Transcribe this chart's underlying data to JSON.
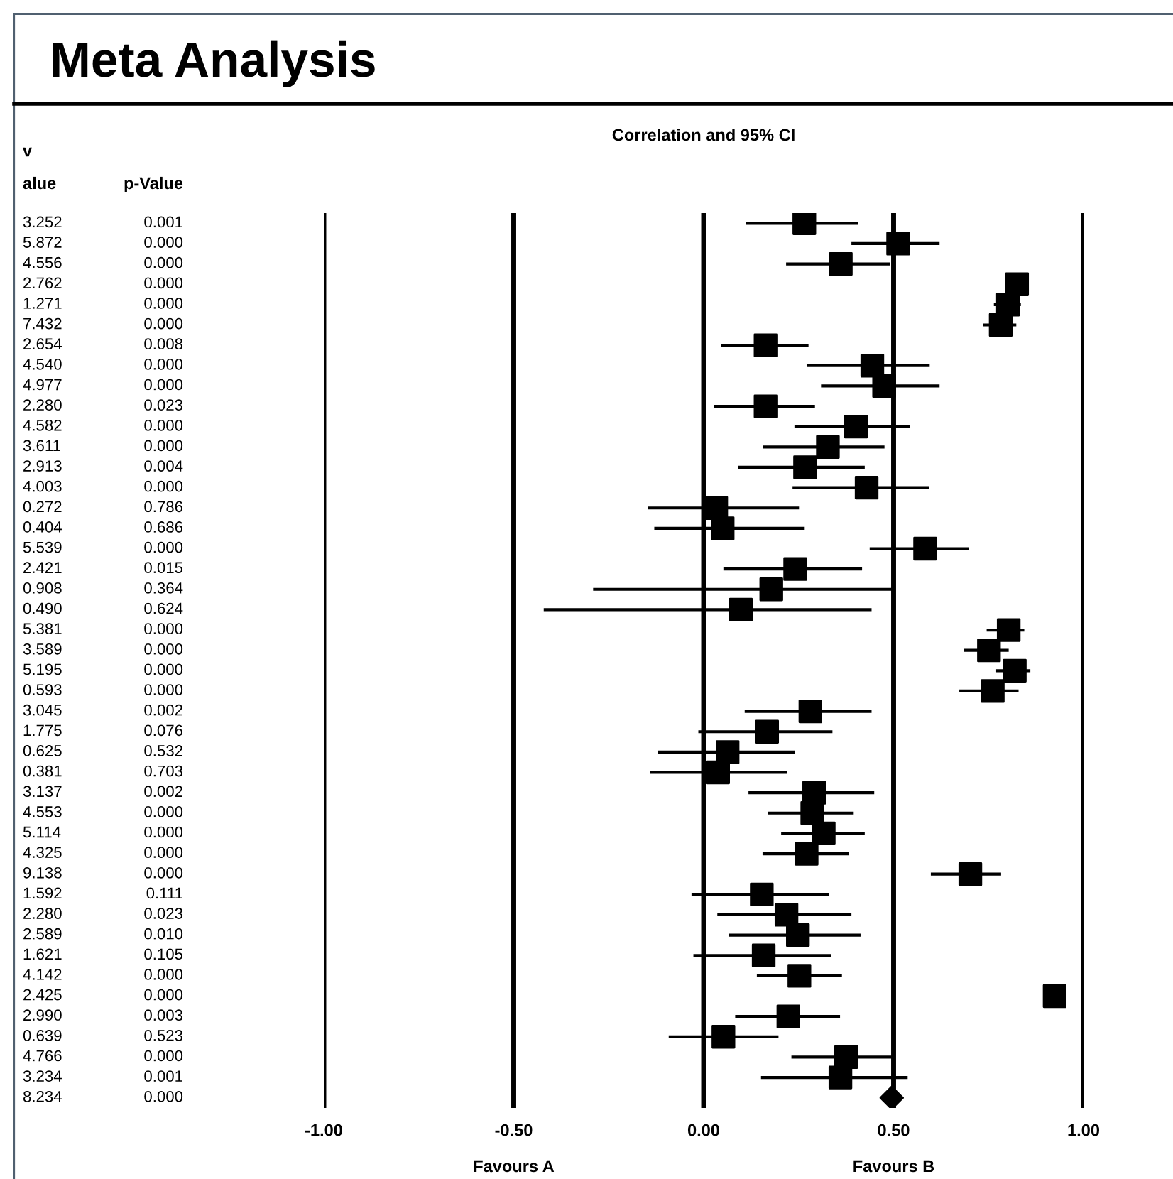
{
  "chart_data": [
    {
      "type": "other",
      "annotations": [
        "v"
      ],
      "categories": [
        "alue",
        "p-Value"
      ],
      "cell_labels": [
        [
          "3.252",
          "0.001"
        ],
        [
          "5.872",
          "0.000"
        ],
        [
          "4.556",
          "0.000"
        ],
        [
          "2.762",
          "0.000"
        ],
        [
          "1.271",
          "0.000"
        ],
        [
          "7.432",
          "0.000"
        ],
        [
          "2.654",
          "0.008"
        ],
        [
          "4.540",
          "0.000"
        ],
        [
          "4.977",
          "0.000"
        ],
        [
          "2.280",
          "0.023"
        ],
        [
          "4.582",
          "0.000"
        ],
        [
          "3.611",
          "0.000"
        ],
        [
          "2.913",
          "0.004"
        ],
        [
          "4.003",
          "0.000"
        ],
        [
          "0.272",
          "0.786"
        ],
        [
          "0.404",
          "0.686"
        ],
        [
          "5.539",
          "0.000"
        ],
        [
          "2.421",
          "0.015"
        ],
        [
          "0.908",
          "0.364"
        ],
        [
          "0.490",
          "0.624"
        ],
        [
          "5.381",
          "0.000"
        ],
        [
          "3.589",
          "0.000"
        ],
        [
          "5.195",
          "0.000"
        ],
        [
          "0.593",
          "0.000"
        ],
        [
          "3.045",
          "0.002"
        ],
        [
          "1.775",
          "0.076"
        ],
        [
          "0.625",
          "0.532"
        ],
        [
          "0.381",
          "0.703"
        ],
        [
          "3.137",
          "0.002"
        ],
        [
          "4.553",
          "0.000"
        ],
        [
          "5.114",
          "0.000"
        ],
        [
          "4.325",
          "0.000"
        ],
        [
          "9.138",
          "0.000"
        ],
        [
          "1.592",
          "0.111"
        ],
        [
          "2.280",
          "0.023"
        ],
        [
          "2.589",
          "0.010"
        ],
        [
          "1.621",
          "0.105"
        ],
        [
          "4.142",
          "0.000"
        ],
        [
          "2.425",
          "0.000"
        ],
        [
          "2.990",
          "0.003"
        ],
        [
          "0.639",
          "0.523"
        ],
        [
          "4.766",
          "0.000"
        ],
        [
          "3.234",
          "0.001"
        ],
        [
          "8.234",
          "0.000"
        ]
      ]
    },
    {
      "type": "scatter",
      "orientation": "horizontal",
      "title": "Meta Analysis",
      "subtitle": "Correlation and 95% CI",
      "categories": [
        null,
        null,
        null,
        null,
        null,
        null,
        null,
        null,
        null,
        null,
        null,
        null,
        null,
        null,
        null,
        null,
        null,
        null,
        null,
        null,
        null,
        null,
        null,
        null,
        null,
        null,
        null,
        null,
        null,
        null,
        null,
        null,
        null,
        null,
        null,
        null,
        null,
        null,
        null,
        null,
        null,
        null,
        null,
        null
      ],
      "xlim": [
        -1,
        1
      ],
      "xticks": [
        {
          "value": -1,
          "label": "-1.00"
        },
        {
          "value": -0.5,
          "label": "-0.50"
        },
        {
          "value": 0,
          "label": "0.00"
        },
        {
          "value": 0.5,
          "label": "0.50"
        },
        {
          "value": 1,
          "label": "1.00"
        }
      ],
      "grid": "x",
      "tick_labels": "x",
      "annotations": [
        "Favours A",
        "Favours B"
      ],
      "series": [
        {
          "color": "#000000",
          "marker": "square",
          "values": [
            0.265,
            0.512,
            0.361,
            0.825,
            0.801,
            0.782,
            0.163,
            0.444,
            0.475,
            0.163,
            0.401,
            0.327,
            0.267,
            0.429,
            0.033,
            0.05,
            0.583,
            0.241,
            0.178,
            0.098,
            0.803,
            0.751,
            0.819,
            0.761,
            0.281,
            0.167,
            0.063,
            0.038,
            0.291,
            0.286,
            0.316,
            0.271,
            0.702,
            0.153,
            0.218,
            0.248,
            0.158,
            0.252,
            0.924,
            0.223,
            0.052,
            0.375,
            0.36,
            null
          ],
          "errors": [
            [
              0.111,
              0.407
            ],
            [
              0.389,
              0.621
            ],
            [
              0.217,
              0.491
            ],
            null,
            [
              0.764,
              0.835
            ],
            [
              0.735,
              0.823
            ],
            [
              0.046,
              0.276
            ],
            [
              0.271,
              0.595
            ],
            [
              0.309,
              0.621
            ],
            [
              0.028,
              0.293
            ],
            [
              0.239,
              0.543
            ],
            [
              0.157,
              0.476
            ],
            [
              0.09,
              0.424
            ],
            [
              0.234,
              0.593
            ],
            [
              -0.146,
              0.251
            ],
            [
              -0.13,
              0.266
            ],
            [
              0.437,
              0.698
            ],
            [
              0.052,
              0.417
            ],
            [
              -0.291,
              0.498
            ],
            [
              -0.421,
              0.442
            ],
            [
              0.745,
              0.844
            ],
            [
              0.686,
              0.803
            ],
            [
              0.77,
              0.86
            ],
            [
              0.673,
              0.829
            ],
            [
              0.108,
              0.442
            ],
            [
              -0.014,
              0.339
            ],
            [
              -0.121,
              0.24
            ],
            [
              -0.142,
              0.22
            ],
            [
              0.118,
              0.449
            ],
            [
              0.17,
              0.395
            ],
            [
              0.204,
              0.424
            ],
            [
              0.155,
              0.382
            ],
            [
              0.598,
              0.783
            ],
            [
              -0.032,
              0.329
            ],
            [
              0.036,
              0.389
            ],
            [
              0.067,
              0.413
            ],
            [
              -0.027,
              0.335
            ],
            [
              0.14,
              0.364
            ],
            null,
            [
              0.083,
              0.359
            ],
            [
              -0.092,
              0.197
            ],
            [
              0.231,
              0.498
            ],
            [
              0.151,
              0.537
            ],
            null
          ]
        },
        {
          "color": "#000000",
          "marker": "diamond",
          "values": [
            null,
            null,
            null,
            null,
            null,
            null,
            null,
            null,
            null,
            null,
            null,
            null,
            null,
            null,
            null,
            null,
            null,
            null,
            null,
            null,
            null,
            null,
            null,
            null,
            null,
            null,
            null,
            null,
            null,
            null,
            null,
            null,
            null,
            null,
            null,
            null,
            null,
            null,
            null,
            null,
            null,
            null,
            null,
            0.495
          ]
        }
      ]
    }
  ]
}
